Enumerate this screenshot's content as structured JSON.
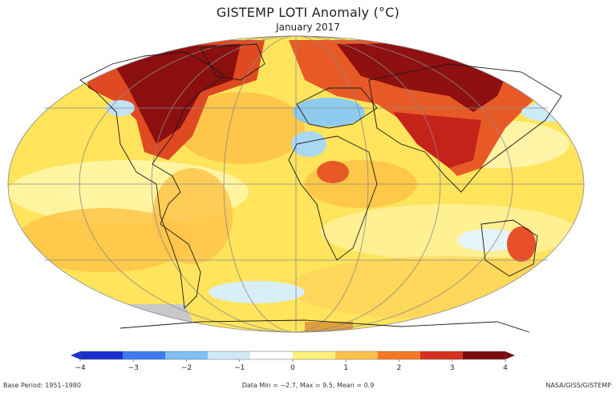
{
  "title": "GISTEMP LOTI Anomaly (°C)",
  "subtitle": "January 2017",
  "colorbar": {
    "ticks": [
      "−4",
      "−3",
      "−2",
      "−1",
      "0",
      "1",
      "2",
      "3",
      "4"
    ],
    "colors": [
      "#1a2fd0",
      "#3b7df0",
      "#7fc0f5",
      "#cfeaf7",
      "#ffffff",
      "#fff27a",
      "#ffc14a",
      "#f57a22",
      "#d7301f",
      "#7a0d0d"
    ]
  },
  "footer": {
    "base_period": "Base Period: 1951–1980",
    "stats": "Data Min = −2.7, Max = 9.5, Mean = 0.9",
    "source": "NASA/GISS/GISTEMP"
  }
}
